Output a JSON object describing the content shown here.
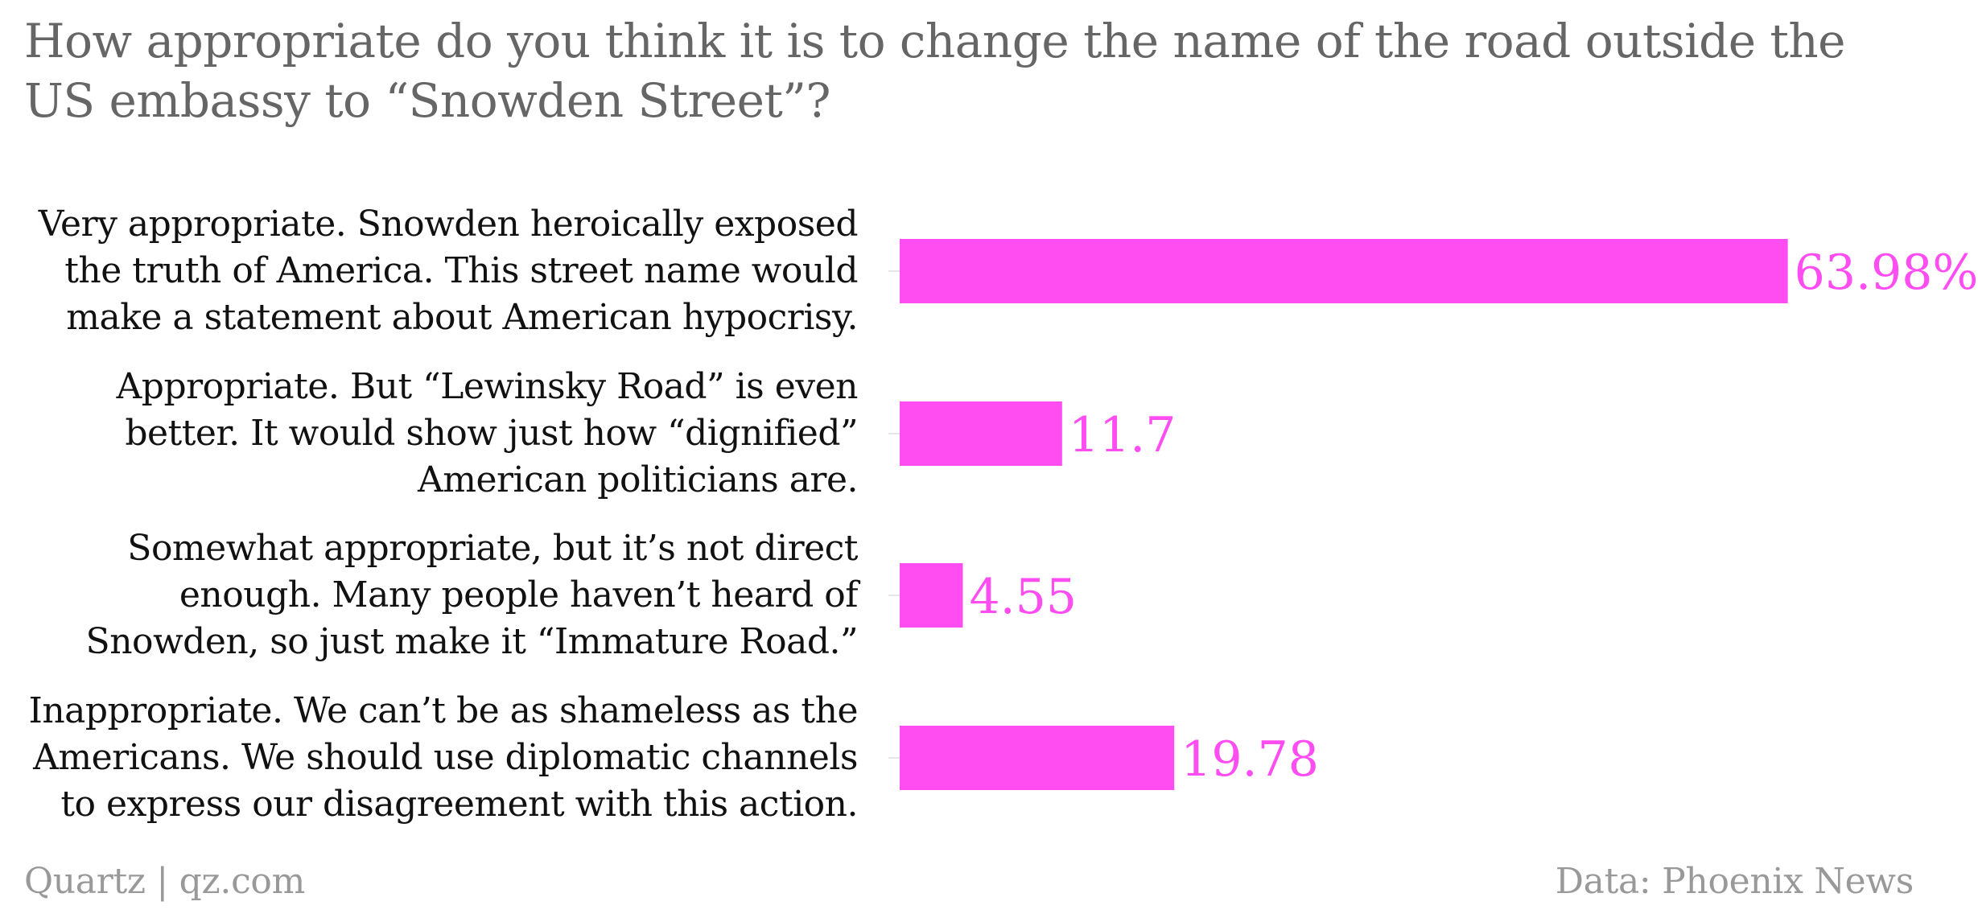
{
  "chart_data": {
    "type": "bar",
    "orientation": "horizontal",
    "title": "How appropriate do you think it is to change the name of the road outside the US embassy to “Snowden Street”?",
    "categories": [
      "Very appropriate. Snowden heroically exposed the truth of America. This street name would make a statement about American hypocrisy.",
      "Appropriate. But “Lewinsky Road” is even better. It would show just how “dignified” American politicians are.",
      "Somewhat appropriate, but it’s not direct enough. Many people haven’t heard of Snowden, so just make it “Immature Road.”",
      "Inappropriate. We can’t be as shameless as the Americans. We should use diplomatic channels to express our disagreement with this action."
    ],
    "values": [
      63.98,
      11.7,
      4.55,
      19.78
    ],
    "value_labels": [
      "63.98%",
      "11.7",
      "4.55",
      "19.78"
    ],
    "xlim": [
      0,
      64
    ],
    "grid": false,
    "colors": {
      "bar": "#ff4df2",
      "value_label": "#ff4df2"
    }
  },
  "footer": {
    "source_left": "Quartz | qz.com",
    "source_right": "Data: Phoenix News"
  }
}
